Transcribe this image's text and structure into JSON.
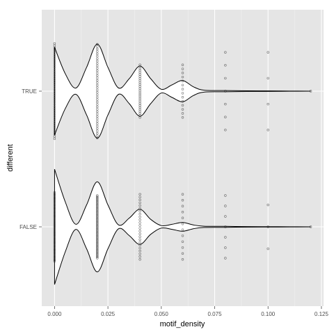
{
  "chart_data": {
    "type": "violin",
    "coord_flip": true,
    "xlabel": "motif_density",
    "ylabel": "different",
    "xlim": [
      -0.006,
      0.126
    ],
    "x_ticks": [
      0.0,
      0.025,
      0.05,
      0.075,
      0.1,
      0.125
    ],
    "x_tick_labels": [
      "0.000",
      "0.025",
      "0.050",
      "0.075",
      "0.100",
      "0.125"
    ],
    "categories": [
      "TRUE",
      "FALSE"
    ],
    "grid": true,
    "background": "#e5e5e5",
    "grid_color": "#ffffff",
    "violin_fill": "#ffffff",
    "violin_stroke": "#000000",
    "point_color": "#000000",
    "series": [
      {
        "category": "TRUE",
        "density_profile": [
          [
            0.0,
            0.7
          ],
          [
            0.005,
            0.28
          ],
          [
            0.01,
            0.05
          ],
          [
            0.015,
            0.38
          ],
          [
            0.02,
            0.75
          ],
          [
            0.025,
            0.38
          ],
          [
            0.03,
            0.05
          ],
          [
            0.035,
            0.2
          ],
          [
            0.04,
            0.4
          ],
          [
            0.045,
            0.2
          ],
          [
            0.05,
            0.03
          ],
          [
            0.055,
            0.1
          ],
          [
            0.06,
            0.17
          ],
          [
            0.065,
            0.07
          ],
          [
            0.07,
            0.015
          ],
          [
            0.08,
            0.01
          ],
          [
            0.09,
            0.005
          ],
          [
            0.1,
            0.004
          ],
          [
            0.11,
            0.002
          ],
          [
            0.12,
            0.0
          ]
        ],
        "points": [
          {
            "x": 0.0,
            "count": 45,
            "spread": 0.76
          },
          {
            "x": 0.02,
            "count": 40,
            "spread": 0.75
          },
          {
            "x": 0.04,
            "count": 28,
            "spread": 0.42
          },
          {
            "x": 0.06,
            "count": 14,
            "spread": 0.42
          },
          {
            "x": 0.08,
            "count": 7,
            "spread": 0.62
          },
          {
            "x": 0.1,
            "count": 4,
            "spread": 0.62
          },
          {
            "x": 0.12,
            "count": 1,
            "spread": 0.25
          }
        ]
      },
      {
        "category": "FALSE",
        "density_profile": [
          [
            0.0,
            0.92
          ],
          [
            0.005,
            0.4
          ],
          [
            0.01,
            0.04
          ],
          [
            0.015,
            0.35
          ],
          [
            0.02,
            0.72
          ],
          [
            0.025,
            0.35
          ],
          [
            0.03,
            0.03
          ],
          [
            0.035,
            0.14
          ],
          [
            0.04,
            0.28
          ],
          [
            0.045,
            0.12
          ],
          [
            0.05,
            0.02
          ],
          [
            0.055,
            0.04
          ],
          [
            0.06,
            0.07
          ],
          [
            0.065,
            0.03
          ],
          [
            0.07,
            0.01
          ],
          [
            0.08,
            0.008
          ],
          [
            0.09,
            0.004
          ],
          [
            0.1,
            0.003
          ],
          [
            0.11,
            0.002
          ],
          [
            0.12,
            0.0
          ]
        ],
        "points": [
          {
            "x": 0.0,
            "count": 50,
            "spread": 0.55
          },
          {
            "x": 0.02,
            "count": 55,
            "spread": 0.5
          },
          {
            "x": 0.04,
            "count": 24,
            "spread": 0.52
          },
          {
            "x": 0.06,
            "count": 12,
            "spread": 0.52
          },
          {
            "x": 0.08,
            "count": 7,
            "spread": 0.5
          },
          {
            "x": 0.1,
            "count": 3,
            "spread": 0.35
          },
          {
            "x": 0.12,
            "count": 1,
            "spread": 0.15
          }
        ]
      }
    ]
  }
}
